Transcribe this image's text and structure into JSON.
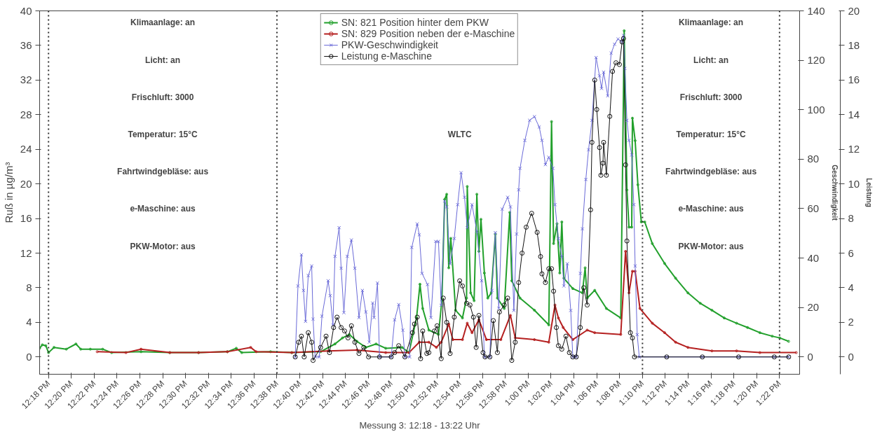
{
  "chart_data": {
    "type": "line",
    "xlabel": "Messung 3: 12:18 - 13:22 Uhr",
    "ylabel": "Ruß in µg/m³",
    "y2label": "Geschwindigkeit",
    "y3label": "Leistung",
    "xlim": [
      12.287,
      13.396
    ],
    "ylim": [
      -2,
      40
    ],
    "y2lim": [
      -7,
      140
    ],
    "y3lim": [
      -1,
      20
    ],
    "xticks": [
      {
        "value": 12.3,
        "label": "12:18 PM"
      },
      {
        "value": 12.3333,
        "label": "12:20 PM"
      },
      {
        "value": 12.3667,
        "label": "12:22 PM"
      },
      {
        "value": 12.4,
        "label": "12:24 PM"
      },
      {
        "value": 12.4333,
        "label": "12:26 PM"
      },
      {
        "value": 12.4667,
        "label": "12:28 PM"
      },
      {
        "value": 12.5,
        "label": "12:30 PM"
      },
      {
        "value": 12.5333,
        "label": "12:32 PM"
      },
      {
        "value": 12.5667,
        "label": "12:34 PM"
      },
      {
        "value": 12.6,
        "label": "12:36 PM"
      },
      {
        "value": 12.6333,
        "label": "12:38 PM"
      },
      {
        "value": 12.6667,
        "label": "12:40 PM"
      },
      {
        "value": 12.7,
        "label": "12:42 PM"
      },
      {
        "value": 12.7333,
        "label": "12:44 PM"
      },
      {
        "value": 12.7667,
        "label": "12:46 PM"
      },
      {
        "value": 12.8,
        "label": "12:48 PM"
      },
      {
        "value": 12.8333,
        "label": "12:50 PM"
      },
      {
        "value": 12.8667,
        "label": "12:52 PM"
      },
      {
        "value": 12.9,
        "label": "12:54 PM"
      },
      {
        "value": 12.9333,
        "label": "12:56 PM"
      },
      {
        "value": 12.9667,
        "label": "12:58 PM"
      },
      {
        "value": 13.0,
        "label": "1:00 PM"
      },
      {
        "value": 13.0333,
        "label": "1:02 PM"
      },
      {
        "value": 13.0667,
        "label": "1:04 PM"
      },
      {
        "value": 13.1,
        "label": "1:06 PM"
      },
      {
        "value": 13.1333,
        "label": "1:08 PM"
      },
      {
        "value": 13.1667,
        "label": "1:10 PM"
      },
      {
        "value": 13.2,
        "label": "1:12 PM"
      },
      {
        "value": 13.2333,
        "label": "1:14 PM"
      },
      {
        "value": 13.2667,
        "label": "1:16 PM"
      },
      {
        "value": 13.3,
        "label": "1:18 PM"
      },
      {
        "value": 13.3333,
        "label": "1:20 PM"
      },
      {
        "value": 13.3667,
        "label": "1:22 PM"
      }
    ],
    "yticks": [
      0,
      4,
      8,
      12,
      16,
      20,
      24,
      28,
      32,
      36,
      40
    ],
    "y2ticks": [
      0,
      20,
      40,
      60,
      80,
      100,
      120,
      140
    ],
    "y3ticks": [
      0,
      2,
      4,
      6,
      8,
      10,
      12,
      14,
      16,
      18,
      20
    ],
    "legend": "top",
    "ref_lines": [
      {
        "axis": "x",
        "value": 12.3,
        "color": "#333333",
        "line_style": "dotted"
      },
      {
        "axis": "x",
        "value": 12.6333,
        "color": "#333333",
        "line_style": "dotted"
      },
      {
        "axis": "x",
        "value": 13.1667,
        "color": "#333333",
        "line_style": "dotted"
      },
      {
        "axis": "x",
        "value": 13.3667,
        "color": "#333333",
        "line_style": "dotted"
      }
    ],
    "annotations": [
      "Klimaanlage: an\nLicht: an\nFrischluft: 3000\nTemperatur: 15°C\nFahrtwindgebläse: aus\ne-Maschine: aus\nPKW-Motor: aus",
      "WLTC",
      "Klimaanlage: an\nLicht: an\nFrischluft: 3000\nTemperatur: 15°C\nFahrtwindgebläse: aus\ne-Maschine: aus\nPKW-Motor: aus"
    ],
    "series": [
      {
        "name": "SN: 821 Position hinter dem PKW",
        "color": "#22a02c",
        "axis": "y",
        "marker": "circle",
        "x": [
          12.287,
          12.291,
          12.296,
          12.3,
          12.308,
          12.326,
          12.34,
          12.347,
          12.361,
          12.379,
          12.392,
          12.435,
          12.477,
          12.519,
          12.561,
          12.574,
          12.582,
          12.624,
          12.655,
          12.697,
          12.718,
          12.729,
          12.739,
          12.75,
          12.763,
          12.778,
          12.792,
          12.816,
          12.826,
          12.837,
          12.842,
          12.846,
          12.855,
          12.869,
          12.874,
          12.878,
          12.881,
          12.884,
          12.887,
          12.894,
          12.904,
          12.91,
          12.911,
          12.916,
          12.921,
          12.925,
          12.928,
          12.931,
          12.936,
          12.941,
          12.946,
          12.952,
          12.955,
          12.965,
          12.973,
          12.976,
          12.988,
          13.009,
          13.03,
          13.034,
          13.037,
          13.042,
          13.046,
          13.049,
          13.052,
          13.065,
          13.079,
          13.083,
          13.086,
          13.097,
          13.114,
          13.135,
          13.14,
          13.144,
          13.147,
          13.151,
          13.152,
          13.156,
          13.16,
          13.165,
          13.17,
          13.181,
          13.199,
          13.215,
          13.233,
          13.251,
          13.268,
          13.286,
          13.304,
          13.32,
          13.338,
          13.356,
          13.367,
          13.38
        ],
        "values": [
          1.0,
          1.4,
          1.3,
          0.5,
          1.1,
          0.9,
          1.5,
          0.9,
          0.9,
          0.9,
          0.5,
          0.6,
          0.5,
          0.5,
          0.6,
          1.0,
          0.5,
          0.6,
          0.5,
          0.6,
          1.5,
          2.2,
          2.6,
          1.8,
          1.1,
          1.5,
          1.0,
          1.1,
          0.5,
          4.5,
          8.4,
          5.6,
          3.1,
          2.6,
          6.5,
          18.2,
          18.8,
          10.3,
          13.7,
          5.4,
          4.5,
          6.8,
          19.7,
          7.4,
          6.5,
          18.8,
          12.2,
          15.9,
          9.7,
          6.8,
          7.4,
          14.2,
          6.8,
          5.6,
          16.7,
          8.8,
          6.8,
          5.4,
          3.7,
          27.2,
          13.1,
          15.4,
          9.7,
          15.6,
          9.1,
          7.9,
          7.4,
          10.3,
          6.8,
          7.7,
          5.6,
          4.5,
          37.7,
          19.3,
          15.0,
          15.0,
          27.6,
          25.0,
          19.9,
          15.6,
          15.6,
          13.1,
          10.8,
          9.1,
          7.4,
          6.2,
          5.4,
          4.5,
          3.9,
          3.4,
          2.8,
          2.4,
          2.2,
          1.8
        ]
      },
      {
        "name": "SN: 829 Position neben der e-Maschine",
        "color": "#b52020",
        "axis": "y",
        "marker": "circle",
        "x": [
          12.371,
          12.413,
          12.435,
          12.477,
          12.519,
          12.561,
          12.595,
          12.603,
          12.655,
          12.708,
          12.75,
          12.792,
          12.826,
          12.841,
          12.855,
          12.866,
          12.873,
          12.884,
          12.89,
          12.904,
          12.911,
          12.918,
          12.928,
          12.939,
          12.96,
          12.974,
          12.981,
          13.009,
          13.03,
          13.039,
          13.044,
          13.051,
          13.065,
          13.086,
          13.097,
          13.135,
          13.142,
          13.147,
          13.152,
          13.156,
          13.163,
          13.181,
          13.199,
          13.215,
          13.233,
          13.268,
          13.304,
          13.338,
          13.391
        ],
        "values": [
          0.6,
          0.5,
          0.9,
          0.5,
          0.5,
          0.6,
          1.1,
          0.6,
          0.5,
          0.7,
          0.8,
          0.5,
          0.5,
          1.7,
          1.7,
          1.1,
          1.7,
          3.8,
          2.0,
          2.0,
          3.9,
          2.8,
          4.3,
          2.0,
          2.0,
          4.8,
          2.2,
          2.0,
          1.7,
          6.0,
          4.5,
          3.4,
          2.0,
          3.1,
          2.8,
          2.6,
          12.2,
          7.4,
          9.9,
          9.9,
          5.6,
          3.9,
          2.8,
          1.7,
          1.1,
          0.7,
          0.7,
          0.5,
          0.5
        ]
      },
      {
        "name": "PKW-Geschwindigkeit",
        "color": "#6a6ad8",
        "axis": "y2",
        "marker": "cross",
        "x": [
          12.66,
          12.664,
          12.669,
          12.672,
          12.675,
          12.679,
          12.684,
          12.686,
          12.689,
          12.695,
          12.699,
          12.708,
          12.711,
          12.715,
          12.718,
          12.724,
          12.727,
          12.731,
          12.736,
          12.742,
          12.747,
          12.753,
          12.758,
          12.763,
          12.768,
          12.773,
          12.775,
          12.78,
          12.783,
          12.8,
          12.805,
          12.811,
          12.817,
          12.82,
          12.827,
          12.83,
          12.838,
          12.841,
          12.845,
          12.853,
          12.858,
          12.865,
          12.869,
          12.873,
          12.878,
          12.881,
          12.886,
          12.892,
          12.897,
          12.902,
          12.907,
          12.911,
          12.918,
          12.925,
          12.932,
          12.936,
          12.944,
          12.947,
          12.952,
          12.957,
          12.962,
          12.97,
          12.974,
          12.979,
          12.983,
          12.986,
          12.988,
          12.995,
          13.002,
          13.009,
          13.016,
          13.02,
          13.025,
          13.03,
          13.036,
          13.039,
          13.044,
          13.049,
          13.052,
          13.057,
          13.062,
          13.065,
          13.07,
          13.076,
          13.079,
          13.084,
          13.088,
          13.093,
          13.099,
          13.104,
          13.107,
          13.11,
          13.116,
          13.121,
          13.126,
          13.131,
          13.137,
          13.139,
          13.141,
          13.144,
          13.147,
          13.151,
          13.154,
          13.156,
          13.159,
          13.162,
          13.202,
          13.254,
          13.307,
          13.359,
          13.38
        ],
        "values": [
          0,
          28.7,
          41.3,
          26.9,
          14.4,
          32.9,
          36.8,
          15.3,
          0,
          0,
          16.5,
          30.8,
          24.8,
          12.9,
          40.7,
          52.3,
          35.9,
          17.9,
          40.7,
          47.3,
          35.9,
          15.9,
          26.9,
          18.2,
          6.0,
          21.8,
          15.9,
          29.9,
          0,
          0,
          15.0,
          21.2,
          10.8,
          0,
          0,
          44.3,
          53.8,
          49.4,
          33.8,
          29.3,
          15.9,
          46.7,
          46.7,
          20.9,
          63.1,
          60.7,
          37.7,
          47.9,
          61.6,
          74.5,
          64.6,
          52.3,
          61.6,
          50.8,
          30.8,
          0,
          0,
          26.9,
          50.3,
          19.7,
          59.8,
          64.6,
          60.7,
          18.8,
          49.7,
          67.6,
          76.3,
          87.6,
          95.7,
          97.2,
          93.0,
          87.6,
          77.8,
          80.8,
          76.3,
          61.6,
          47.9,
          40.7,
          28.7,
          37.7,
          18.8,
          0,
          0,
          33.8,
          51.8,
          71.8,
          83.8,
          95.7,
          121.1,
          113.7,
          108.6,
          115.2,
          105.6,
          122.9,
          126.5,
          128.6,
          127.4,
          130.1,
          116.7,
          95.7,
          87.6,
          81.7,
          61.6,
          36.8,
          9.0,
          0,
          0,
          0,
          0,
          0,
          0
        ]
      },
      {
        "name": "Leistung e-Maschine",
        "color": "#111111",
        "axis": "y3",
        "marker": "circle",
        "x": [
          12.66,
          12.665,
          12.669,
          12.673,
          12.679,
          12.684,
          12.686,
          12.697,
          12.705,
          12.71,
          12.716,
          12.721,
          12.727,
          12.732,
          12.737,
          12.742,
          12.747,
          12.753,
          12.76,
          12.767,
          12.783,
          12.8,
          12.805,
          12.811,
          12.82,
          12.831,
          12.834,
          12.838,
          12.843,
          12.846,
          12.852,
          12.855,
          12.863,
          12.867,
          12.873,
          12.876,
          12.881,
          12.886,
          12.892,
          12.9,
          12.904,
          12.91,
          12.915,
          12.92,
          12.924,
          12.928,
          12.934,
          12.937,
          12.944,
          12.949,
          12.955,
          12.958,
          12.965,
          12.97,
          12.976,
          12.981,
          12.986,
          12.991,
          12.997,
          13.005,
          13.013,
          13.018,
          13.02,
          13.025,
          13.03,
          13.034,
          13.037,
          13.041,
          13.044,
          13.049,
          13.055,
          13.06,
          13.065,
          13.07,
          13.076,
          13.081,
          13.086,
          13.091,
          13.093,
          13.097,
          13.1,
          13.104,
          13.106,
          13.109,
          13.11,
          13.114,
          13.119,
          13.123,
          13.128,
          13.133,
          13.137,
          13.139,
          13.142,
          13.144,
          13.149,
          13.152,
          13.155,
          13.202,
          13.254,
          13.307,
          13.359,
          13.38
        ],
        "values": [
          0,
          0.85,
          1.2,
          0,
          1.4,
          0.85,
          -0.2,
          0.55,
          1.2,
          0.25,
          1.7,
          2.3,
          1.7,
          1.5,
          1.1,
          1.8,
          0.85,
          0.2,
          0.55,
          0,
          0,
          0,
          0.25,
          0.65,
          0,
          1.4,
          1.9,
          2.3,
          -0.1,
          1.5,
          0.2,
          0.25,
          1.5,
          1.8,
          -0.1,
          3.4,
          2.0,
          0.2,
          2.3,
          4.4,
          4.1,
          3.1,
          3.0,
          2.3,
          0.55,
          2.4,
          0.25,
          0,
          0,
          2.1,
          0.25,
          2.6,
          3.0,
          3.4,
          -0.2,
          0.85,
          4.3,
          6.0,
          7.5,
          8.3,
          7.2,
          5.8,
          4.8,
          4.3,
          5.1,
          5.1,
          3.8,
          1.7,
          0.65,
          0.45,
          1.2,
          0.25,
          0,
          0,
          1.7,
          4.0,
          3.0,
          8.5,
          12.4,
          16.0,
          14.3,
          12.1,
          10.5,
          11.2,
          12.4,
          10.5,
          13.9,
          16.5,
          17.0,
          16.9,
          18.2,
          18.4,
          11.1,
          6.7,
          1.4,
          1.1,
          0,
          0,
          0,
          0,
          0,
          0
        ]
      }
    ]
  }
}
